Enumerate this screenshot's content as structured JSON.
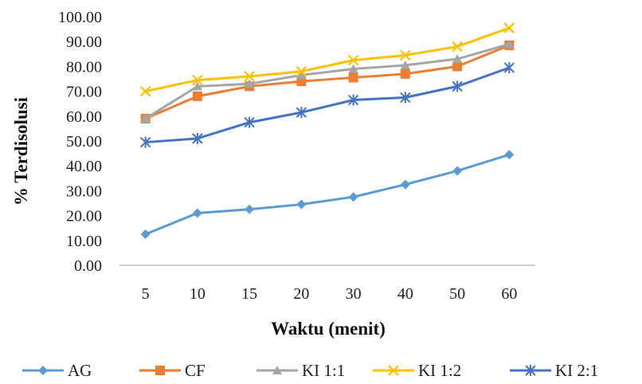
{
  "chart_data": {
    "type": "line",
    "title": "",
    "xlabel": "Waktu (menit)",
    "ylabel": "% Terdisolusi",
    "categories": [
      "5",
      "10",
      "15",
      "20",
      "30",
      "40",
      "50",
      "60"
    ],
    "ylim": [
      0,
      100
    ],
    "ytick_labels": [
      "0.00",
      "10.00",
      "20.00",
      "30.00",
      "40.00",
      "50.00",
      "60.00",
      "70.00",
      "80.00",
      "90.00",
      "100.00"
    ],
    "grid": false,
    "legend_position": "bottom",
    "series": [
      {
        "name": "AG",
        "color": "#5b9bd5",
        "marker": "diamond",
        "values": [
          12.5,
          21.0,
          22.5,
          24.5,
          27.5,
          32.5,
          38.0,
          44.5
        ]
      },
      {
        "name": "CF",
        "color": "#ed7d31",
        "marker": "square",
        "values": [
          59.0,
          68.0,
          72.0,
          74.0,
          75.5,
          77.0,
          80.0,
          88.5
        ]
      },
      {
        "name": "KI 1:1",
        "color": "#a5a5a5",
        "marker": "triangle",
        "values": [
          59.0,
          72.0,
          73.0,
          76.5,
          79.0,
          80.5,
          83.0,
          89.0
        ]
      },
      {
        "name": "KI 1:2",
        "color": "#ffc000",
        "marker": "x",
        "values": [
          70.0,
          74.5,
          76.0,
          78.0,
          82.5,
          84.5,
          88.0,
          95.5
        ]
      },
      {
        "name": "KI 2:1",
        "color": "#4472c4",
        "marker": "asterisk",
        "values": [
          49.5,
          51.0,
          57.5,
          61.5,
          66.5,
          67.5,
          72.0,
          79.5
        ]
      }
    ]
  }
}
